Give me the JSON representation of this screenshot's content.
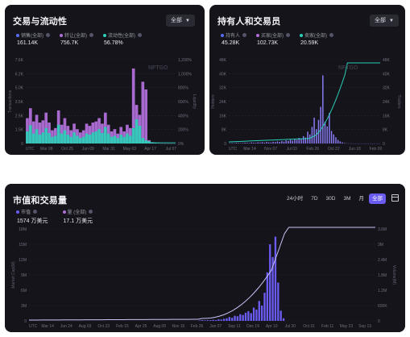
{
  "panels": [
    {
      "title": "交易与流动性",
      "dropdown": "全部",
      "legend": [
        {
          "label": "销售(全部)",
          "value": "161.14K",
          "color": "#5b6cf0"
        },
        {
          "label": "转让(全部)",
          "value": "756.7K",
          "color": "#b06fd8"
        },
        {
          "label": "流动性(全部)",
          "value": "56.78%",
          "color": "#2ad0b8"
        }
      ],
      "watermark": "NFTGO"
    },
    {
      "title": "持有人和交易员",
      "dropdown": "全部",
      "legend": [
        {
          "label": "持有人",
          "value": "45.28K",
          "color": "#5b6cf0"
        },
        {
          "label": "买家(全部)",
          "value": "102.73K",
          "color": "#b06fd8"
        },
        {
          "label": "卖家(全部)",
          "value": "20.59K",
          "color": "#2ad0b8"
        }
      ],
      "watermark": "NFTGO"
    },
    {
      "title": "市值和交易量",
      "legend": [
        {
          "label": "市值",
          "value": "1574 万美元",
          "color": "#6a5cf0"
        },
        {
          "label": "量 (全部)",
          "value": "17.1 万美元",
          "color": "#b06fd8"
        }
      ],
      "ranges": [
        "24小时",
        "7D",
        "30D",
        "3M",
        "月",
        "全部"
      ],
      "active_range": "全部"
    }
  ],
  "chart_data": [
    {
      "type": "bar",
      "x_ticks": [
        "UTC",
        "Mar 08",
        "Oct 25",
        "Jun 09",
        "Mar 31",
        "May 03",
        "Apr 17",
        "Jul 07"
      ],
      "y_left_ticks": [
        "0",
        "1.5K",
        "2.5K",
        "3.5K",
        "5.0K",
        "6.2K",
        "7.6K"
      ],
      "y_right_ticks": [
        "0%",
        "200%",
        "400%",
        "600%",
        "800%",
        "1,000%",
        "1,200%"
      ],
      "y_left_label": "Transactions",
      "y_right_label": "Liquidity",
      "ylim": [
        0,
        7600
      ],
      "series": [
        {
          "name": "销售(全部)",
          "values": [
            1100,
            1650,
            900,
            1300,
            800,
            1000,
            1400,
            950,
            600,
            700,
            1700,
            900,
            1200,
            800,
            600,
            1000,
            700,
            500,
            600,
            900,
            800,
            1000,
            1100,
            1300,
            950,
            1500,
            900,
            600,
            700,
            500,
            800,
            600,
            900,
            700,
            1400,
            2200,
            1600,
            500,
            300,
            200,
            100,
            60,
            30,
            10,
            10,
            10,
            10,
            10
          ]
        },
        {
          "name": "转让(全部)",
          "values": [
            2300,
            3200,
            2000,
            2600,
            1900,
            2100,
            2800,
            1900,
            1200,
            1400,
            3000,
            1700,
            2300,
            1600,
            1200,
            1800,
            1300,
            1000,
            1200,
            1800,
            1600,
            1900,
            2000,
            2300,
            1800,
            2800,
            1700,
            1100,
            1300,
            900,
            1500,
            1100,
            1700,
            1400,
            6800,
            3500,
            2600,
            5600,
            4900,
            300,
            120,
            70,
            30,
            15,
            10,
            10,
            10,
            10
          ]
        }
      ]
    },
    {
      "type": "bar",
      "x_ticks": [
        "UTC",
        "Mar 14",
        "Nov 07",
        "Jul 03",
        "Feb 26",
        "Oct 22",
        "Jun 18",
        "Feb 09"
      ],
      "y_left_ticks": [
        "0",
        "8K",
        "16K",
        "24K",
        "32K",
        "40K",
        "48K"
      ],
      "y_right_ticks": [
        "0",
        "8K",
        "16K",
        "24K",
        "32K",
        "40K",
        "48K"
      ],
      "y_left_label": "Holders",
      "y_right_label": "Traders",
      "ylim": [
        0,
        48000
      ],
      "series": [
        {
          "name": "持有人",
          "values": [
            0,
            0,
            0,
            0,
            0,
            0,
            0,
            0,
            0,
            0,
            0,
            0,
            0,
            0,
            0,
            0,
            0,
            0,
            0,
            0,
            0,
            0,
            0,
            0,
            0,
            0,
            0,
            0,
            0,
            0,
            0,
            0,
            0,
            0,
            0,
            0,
            0,
            0,
            0,
            0,
            0,
            0,
            0,
            0,
            0,
            0,
            0,
            0,
            0,
            0,
            0,
            0,
            0,
            0,
            0,
            0,
            0,
            0,
            0,
            0,
            0,
            0,
            0,
            0,
            0,
            0,
            0,
            0,
            0,
            0
          ]
        },
        {
          "name": "买家(全部)",
          "values": [
            200,
            300,
            200,
            400,
            300,
            200,
            300,
            500,
            400,
            300,
            600,
            500,
            400,
            700,
            600,
            800,
            500,
            900,
            700,
            600,
            1000,
            800,
            1200,
            900,
            1400,
            1100,
            1800,
            1500,
            2200,
            1700,
            2600,
            2100,
            3200,
            2600,
            4200,
            3400,
            6800,
            5200,
            9500,
            14800,
            8200,
            13500,
            21000,
            39000,
            12500,
            9800,
            17500,
            7200,
            5200,
            3600,
            2100,
            1200,
            700,
            300,
            150,
            80,
            40,
            20,
            10,
            10,
            10,
            10,
            10,
            10,
            10,
            10,
            10,
            10,
            10,
            10
          ]
        }
      ]
    },
    {
      "type": "bar",
      "x_ticks": [
        "UTC",
        "Mar 14",
        "Jun 24",
        "Aug 03",
        "Oct 23",
        "Feb 15",
        "Apr 25",
        "Aug 05",
        "Nov 16",
        "Feb 26",
        "Jun 07",
        "Sep 11",
        "Dec 19",
        "Apr 10",
        "Jul 20",
        "Oct 31",
        "Feb 11",
        "May 23",
        "Sep 13"
      ],
      "y_left_ticks": [
        "0",
        "3M",
        "6M",
        "9M",
        "12M",
        "15M",
        "18M"
      ],
      "y_right_ticks": [
        "0",
        "600K",
        "1.2M",
        "1.8M",
        "2.4M",
        "3M",
        "3.6M"
      ],
      "y_left_label": "Market Cap(M)",
      "y_right_label": "Volume(M)",
      "ylim": [
        0,
        18000000
      ],
      "series": [
        {
          "name": "市值",
          "values": []
        },
        {
          "name": "量 (全部)",
          "values": [
            20000,
            30000,
            20000,
            30000,
            30000,
            40000,
            30000,
            60000,
            50000,
            80000,
            100000,
            150000,
            120000,
            200000,
            180000,
            260000,
            230000,
            320000,
            380000,
            300000,
            520000,
            440000,
            780000,
            600000,
            1100000,
            1900000,
            3000000,
            2500000,
            3300000,
            1500000,
            400000,
            100000
          ]
        }
      ]
    }
  ]
}
